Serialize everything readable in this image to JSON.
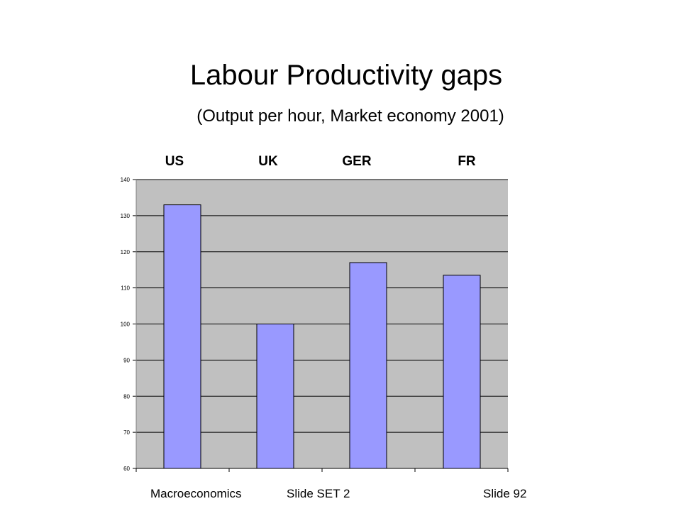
{
  "slide": {
    "title": "Labour Productivity gaps",
    "subtitle": "(Output per hour,  Market economy 2001)",
    "footer": {
      "course": "Macroeconomics",
      "set": "Slide SET 2",
      "slide_number": "Slide 92"
    }
  },
  "colors": {
    "bar_fill": "#9999ff",
    "plot_background": "#c0c0c0",
    "gridline": "#000000"
  },
  "chart_data": {
    "type": "bar",
    "title": "",
    "xlabel": "",
    "ylabel": "",
    "categories": [
      "US",
      "UK",
      "GER",
      "FR"
    ],
    "values": [
      133,
      100,
      117,
      113.5
    ],
    "ylim": [
      60,
      140
    ],
    "yticks": [
      60,
      70,
      80,
      90,
      100,
      110,
      120,
      130,
      140
    ],
    "grid": true,
    "legend": "none",
    "category_labels_position": "top"
  }
}
